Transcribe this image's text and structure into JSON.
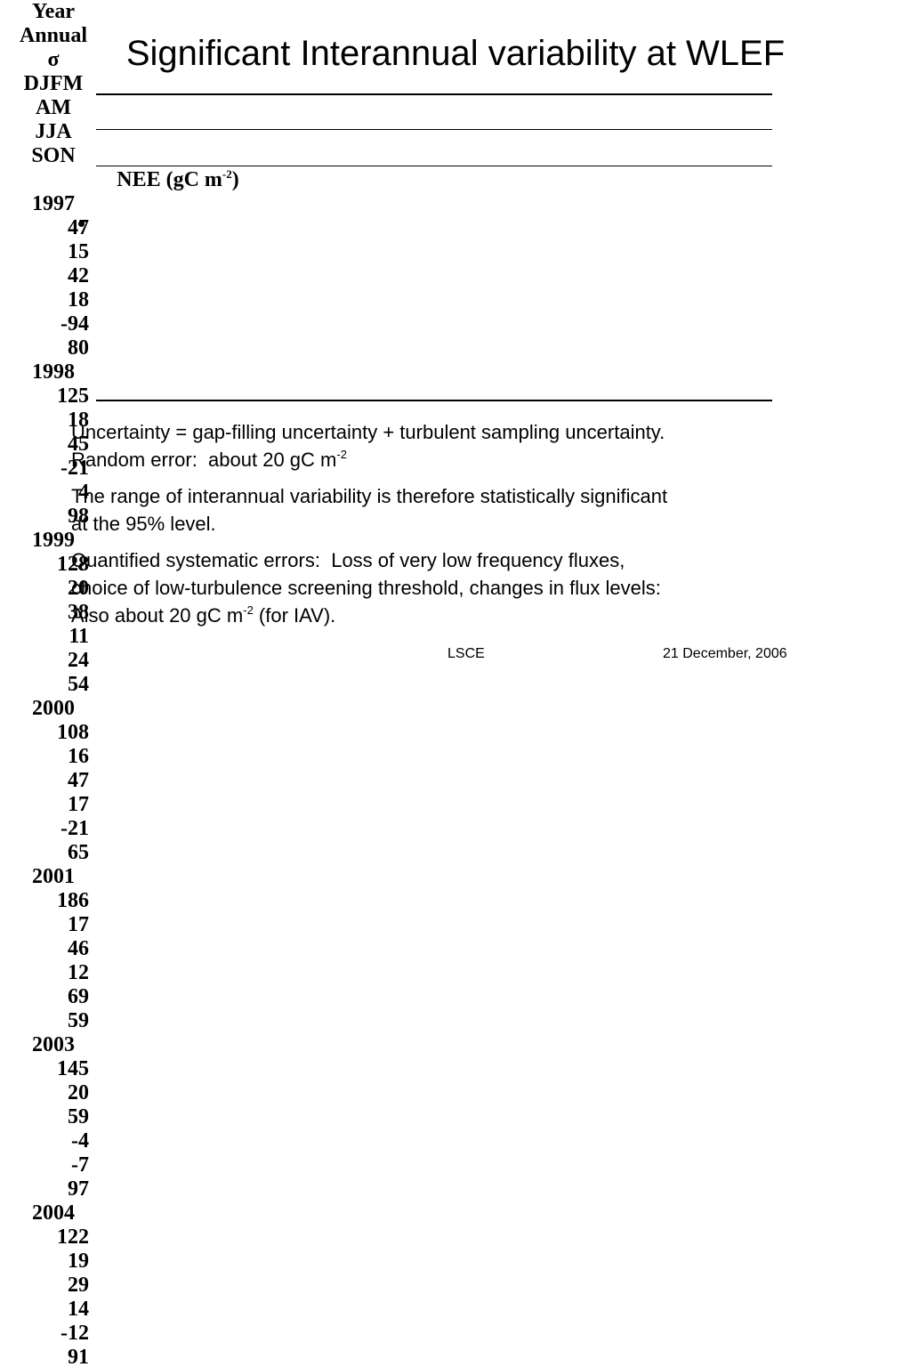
{
  "title": "Significant Interannual variability at WLEF",
  "table": {
    "header": [
      "Year",
      "Annual",
      "σ",
      "DJFM",
      "AM",
      "JJA",
      "SON"
    ],
    "unit": [
      {
        "text": "NEE (gC m"
      },
      {
        "sup": "-2"
      },
      {
        "text": ")"
      }
    ],
    "rows": [
      [
        1997,
        47,
        15,
        42,
        18,
        -94,
        80
      ],
      [
        1998,
        125,
        18,
        45,
        -21,
        4,
        98
      ],
      [
        1999,
        128,
        20,
        38,
        11,
        24,
        54
      ],
      [
        2000,
        108,
        16,
        47,
        17,
        -21,
        65
      ],
      [
        2001,
        186,
        17,
        46,
        12,
        69,
        59
      ],
      [
        2003,
        145,
        20,
        59,
        -4,
        -7,
        97
      ],
      [
        2004,
        122,
        19,
        29,
        14,
        -12,
        91
      ]
    ]
  },
  "paragraphs": [
    [
      [
        {
          "text": "Uncertainty = gap-filling uncertainty + turbulent sampling uncertainty."
        }
      ],
      [
        {
          "text": "Random error:  about 20 gC m"
        },
        {
          "sup": "-2"
        }
      ]
    ],
    [
      [
        {
          "text": "The range of interannual variability is therefore statistically significant"
        }
      ],
      [
        {
          "text": "at the 95% level."
        }
      ]
    ],
    [
      [
        {
          "text": "Quantified systematic errors:  Loss of very low frequency fluxes,"
        }
      ],
      [
        {
          "text": "choice of low-turbulence screening threshold, changes in flux levels:"
        }
      ],
      [
        {
          "text": "Also about 20 gC m"
        },
        {
          "sup": "-2"
        },
        {
          "text": " (for IAV)."
        }
      ]
    ]
  ],
  "footer": {
    "left": "LSCE",
    "right": "21 December, 2006"
  }
}
